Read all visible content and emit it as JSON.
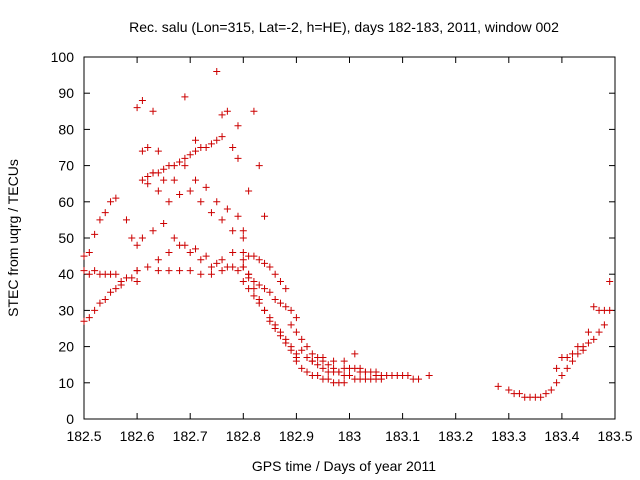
{
  "chart_data": {
    "type": "scatter",
    "title": "Rec. salu (Lon=315, Lat=-2, h=HE), days 182-183, 2011, window 002",
    "xlabel": "GPS time / Days of year 2011",
    "ylabel": "STEC from uqrg / TECUs",
    "xlim": [
      182.5,
      183.5
    ],
    "ylim": [
      0,
      100
    ],
    "x_ticks": [
      182.5,
      182.6,
      182.7,
      182.8,
      182.9,
      183.0,
      183.1,
      183.2,
      183.3,
      183.4,
      183.5
    ],
    "x_tick_labels": [
      "182.5",
      "182.6",
      "182.7",
      "182.8",
      "182.9",
      "183",
      "183.1",
      "183.2",
      "183.3",
      "183.4",
      "183.5"
    ],
    "y_ticks": [
      0,
      10,
      20,
      30,
      40,
      50,
      60,
      70,
      80,
      90,
      100
    ],
    "y_tick_labels": [
      "0",
      "10",
      "20",
      "30",
      "40",
      "50",
      "60",
      "70",
      "80",
      "90",
      "100"
    ],
    "grid": false,
    "legend": "none",
    "marker": "+",
    "color": "#cc0000",
    "series": [
      {
        "points": [
          [
            182.5,
            27
          ],
          [
            182.51,
            28
          ],
          [
            182.52,
            30
          ],
          [
            182.53,
            32
          ],
          [
            182.54,
            33
          ],
          [
            182.55,
            35
          ],
          [
            182.56,
            36
          ],
          [
            182.57,
            38
          ],
          [
            182.58,
            39
          ],
          [
            182.59,
            39
          ],
          [
            182.6,
            41
          ],
          [
            182.5,
            41
          ],
          [
            182.51,
            40
          ],
          [
            182.52,
            41
          ],
          [
            182.53,
            40
          ],
          [
            182.54,
            40
          ],
          [
            182.55,
            40
          ],
          [
            182.56,
            40
          ],
          [
            182.57,
            37
          ],
          [
            182.6,
            38
          ],
          [
            182.5,
            45
          ],
          [
            182.51,
            46
          ],
          [
            182.52,
            51
          ],
          [
            182.53,
            55
          ],
          [
            182.54,
            57
          ],
          [
            182.55,
            60
          ],
          [
            182.56,
            61
          ],
          [
            182.58,
            55
          ],
          [
            182.59,
            50
          ],
          [
            182.6,
            48
          ],
          [
            182.61,
            66
          ],
          [
            182.62,
            67
          ],
          [
            182.63,
            68
          ],
          [
            182.64,
            68
          ],
          [
            182.65,
            69
          ],
          [
            182.66,
            70
          ],
          [
            182.67,
            70
          ],
          [
            182.68,
            71
          ],
          [
            182.69,
            72
          ],
          [
            182.7,
            73
          ],
          [
            182.71,
            74
          ],
          [
            182.72,
            75
          ],
          [
            182.73,
            75
          ],
          [
            182.74,
            76
          ],
          [
            182.75,
            77
          ],
          [
            182.76,
            78
          ],
          [
            182.6,
            86
          ],
          [
            182.61,
            88
          ],
          [
            182.63,
            85
          ],
          [
            182.62,
            75
          ],
          [
            182.64,
            74
          ],
          [
            182.69,
            89
          ],
          [
            182.71,
            77
          ],
          [
            182.75,
            96
          ],
          [
            182.76,
            84
          ],
          [
            182.77,
            85
          ],
          [
            182.79,
            81
          ],
          [
            182.82,
            85
          ],
          [
            182.83,
            70
          ],
          [
            182.6,
            41
          ],
          [
            182.62,
            42
          ],
          [
            182.64,
            41
          ],
          [
            182.66,
            41
          ],
          [
            182.68,
            41
          ],
          [
            182.7,
            41
          ],
          [
            182.72,
            40
          ],
          [
            182.74,
            40
          ],
          [
            182.76,
            41
          ],
          [
            182.78,
            42
          ],
          [
            182.8,
            44
          ],
          [
            182.61,
            50
          ],
          [
            182.63,
            52
          ],
          [
            182.65,
            54
          ],
          [
            182.67,
            50
          ],
          [
            182.69,
            48
          ],
          [
            182.71,
            47
          ],
          [
            182.73,
            45
          ],
          [
            182.75,
            43
          ],
          [
            182.77,
            42
          ],
          [
            182.79,
            41
          ],
          [
            182.81,
            40
          ],
          [
            182.62,
            65
          ],
          [
            182.64,
            63
          ],
          [
            182.66,
            60
          ],
          [
            182.68,
            62
          ],
          [
            182.7,
            63
          ],
          [
            182.72,
            60
          ],
          [
            182.74,
            57
          ],
          [
            182.76,
            55
          ],
          [
            182.78,
            52
          ],
          [
            182.8,
            50
          ],
          [
            182.61,
            74
          ],
          [
            182.63,
            68
          ],
          [
            182.65,
            66
          ],
          [
            182.67,
            66
          ],
          [
            182.69,
            70
          ],
          [
            182.71,
            66
          ],
          [
            182.73,
            64
          ],
          [
            182.75,
            60
          ],
          [
            182.77,
            58
          ],
          [
            182.79,
            56
          ],
          [
            182.8,
            52
          ],
          [
            182.64,
            44
          ],
          [
            182.66,
            46
          ],
          [
            182.68,
            48
          ],
          [
            182.7,
            46
          ],
          [
            182.72,
            44
          ],
          [
            182.74,
            42
          ],
          [
            182.76,
            44
          ],
          [
            182.78,
            46
          ],
          [
            182.8,
            42
          ],
          [
            182.81,
            40
          ],
          [
            182.82,
            38
          ],
          [
            182.83,
            37
          ],
          [
            182.84,
            36
          ],
          [
            182.85,
            35
          ],
          [
            182.86,
            33
          ],
          [
            182.87,
            32
          ],
          [
            182.88,
            31
          ],
          [
            182.89,
            30
          ],
          [
            182.9,
            28
          ],
          [
            182.8,
            46
          ],
          [
            182.81,
            45
          ],
          [
            182.82,
            45
          ],
          [
            182.83,
            44
          ],
          [
            182.84,
            43
          ],
          [
            182.85,
            42
          ],
          [
            182.86,
            40
          ],
          [
            182.87,
            38
          ],
          [
            182.88,
            36
          ],
          [
            182.8,
            38
          ],
          [
            182.81,
            36
          ],
          [
            182.82,
            34
          ],
          [
            182.83,
            32
          ],
          [
            182.84,
            30
          ],
          [
            182.85,
            28
          ],
          [
            182.86,
            26
          ],
          [
            182.87,
            24
          ],
          [
            182.88,
            22
          ],
          [
            182.89,
            20
          ],
          [
            182.9,
            18
          ],
          [
            182.8,
            42
          ],
          [
            182.81,
            39
          ],
          [
            182.82,
            36
          ],
          [
            182.83,
            33
          ],
          [
            182.84,
            30
          ],
          [
            182.85,
            27
          ],
          [
            182.86,
            25
          ],
          [
            182.87,
            23
          ],
          [
            182.88,
            21
          ],
          [
            182.89,
            19
          ],
          [
            182.9,
            17
          ],
          [
            182.84,
            56
          ],
          [
            182.81,
            63
          ],
          [
            182.79,
            72
          ],
          [
            182.78,
            75
          ],
          [
            182.89,
            26
          ],
          [
            182.9,
            24
          ],
          [
            182.91,
            22
          ],
          [
            182.92,
            20
          ],
          [
            182.93,
            18
          ],
          [
            182.94,
            17
          ],
          [
            182.95,
            16
          ],
          [
            182.96,
            15
          ],
          [
            182.97,
            14
          ],
          [
            182.98,
            13
          ],
          [
            182.99,
            12
          ],
          [
            182.9,
            16
          ],
          [
            182.91,
            14
          ],
          [
            182.92,
            13
          ],
          [
            182.93,
            12
          ],
          [
            182.94,
            12
          ],
          [
            182.95,
            11
          ],
          [
            182.96,
            11
          ],
          [
            182.97,
            10
          ],
          [
            182.98,
            10
          ],
          [
            182.99,
            10
          ],
          [
            182.91,
            19
          ],
          [
            182.92,
            17
          ],
          [
            182.93,
            16
          ],
          [
            182.94,
            15
          ],
          [
            182.95,
            14
          ],
          [
            182.96,
            13
          ],
          [
            182.97,
            13
          ],
          [
            182.98,
            13
          ],
          [
            182.99,
            14
          ],
          [
            182.93,
            16
          ],
          [
            182.95,
            17
          ],
          [
            182.97,
            16
          ],
          [
            182.99,
            16
          ],
          [
            183.0,
            14
          ],
          [
            183.01,
            14
          ],
          [
            183.02,
            13
          ],
          [
            183.03,
            13
          ],
          [
            183.04,
            13
          ],
          [
            183.05,
            12
          ],
          [
            183.06,
            12
          ],
          [
            183.07,
            12
          ],
          [
            183.08,
            12
          ],
          [
            183.09,
            12
          ],
          [
            183.1,
            12
          ],
          [
            183.11,
            12
          ],
          [
            183.12,
            11
          ],
          [
            183.13,
            11
          ],
          [
            183.15,
            12
          ],
          [
            183.0,
            12
          ],
          [
            183.01,
            11
          ],
          [
            183.02,
            11
          ],
          [
            183.03,
            11
          ],
          [
            183.04,
            11
          ],
          [
            183.05,
            11
          ],
          [
            183.06,
            11
          ],
          [
            183.01,
            18
          ],
          [
            183.02,
            14
          ],
          [
            183.03,
            13
          ],
          [
            183.05,
            13
          ],
          [
            183.28,
            9
          ],
          [
            183.3,
            8
          ],
          [
            183.31,
            7
          ],
          [
            183.32,
            7
          ],
          [
            183.33,
            6
          ],
          [
            183.34,
            6
          ],
          [
            183.35,
            6
          ],
          [
            183.36,
            6
          ],
          [
            183.37,
            7
          ],
          [
            183.38,
            8
          ],
          [
            183.39,
            10
          ],
          [
            183.4,
            12
          ],
          [
            183.41,
            14
          ],
          [
            183.42,
            16
          ],
          [
            183.43,
            18
          ],
          [
            183.44,
            19
          ],
          [
            183.45,
            21
          ],
          [
            183.46,
            22
          ],
          [
            183.47,
            24
          ],
          [
            183.48,
            26
          ],
          [
            183.49,
            30
          ],
          [
            183.39,
            14
          ],
          [
            183.4,
            17
          ],
          [
            183.41,
            17
          ],
          [
            183.42,
            18
          ],
          [
            183.43,
            20
          ],
          [
            183.44,
            20
          ],
          [
            183.45,
            24
          ],
          [
            183.46,
            31
          ],
          [
            183.47,
            30
          ],
          [
            183.48,
            30
          ],
          [
            183.49,
            38
          ]
        ]
      }
    ]
  }
}
